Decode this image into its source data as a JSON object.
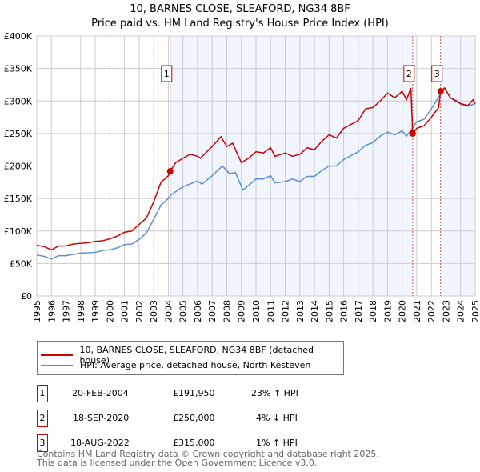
{
  "chart_data": {
    "type": "line",
    "title": "10, BARNES CLOSE, SLEAFORD, NG34 8BF",
    "subtitle": "Price paid vs. HM Land Registry's House Price Index (HPI)",
    "xlim": [
      1995,
      2025
    ],
    "ylim": [
      0,
      400000
    ],
    "y_ticks": [
      0,
      50000,
      100000,
      150000,
      200000,
      250000,
      300000,
      350000,
      400000
    ],
    "y_tick_labels": [
      "£0",
      "£50K",
      "£100K",
      "£150K",
      "£200K",
      "£250K",
      "£300K",
      "£350K",
      "£400K"
    ],
    "x_ticks": [
      "1995",
      "1996",
      "1997",
      "1998",
      "1999",
      "2000",
      "2001",
      "2002",
      "2003",
      "2004",
      "2005",
      "2006",
      "2007",
      "2008",
      "2009",
      "2010",
      "2011",
      "2012",
      "2013",
      "2014",
      "2015",
      "2016",
      "2017",
      "2018",
      "2019",
      "2020",
      "2021",
      "2022",
      "2023",
      "2024",
      "2025"
    ],
    "grid": true,
    "series": [
      {
        "name": "10, BARNES CLOSE, SLEAFORD, NG34 8BF (detached house)",
        "color": "#cc0000",
        "points": [
          [
            1995,
            78000
          ],
          [
            1995.5,
            76000
          ],
          [
            1996,
            71000
          ],
          [
            1996.5,
            77000
          ],
          [
            1997,
            77000
          ],
          [
            1997.5,
            80000
          ],
          [
            1998,
            81000
          ],
          [
            1998.5,
            82000
          ],
          [
            1999,
            84000
          ],
          [
            1999.5,
            85000
          ],
          [
            2000,
            88000
          ],
          [
            2000.5,
            92000
          ],
          [
            2001,
            98000
          ],
          [
            2001.5,
            100000
          ],
          [
            2002,
            110000
          ],
          [
            2002.5,
            120000
          ],
          [
            2003,
            145000
          ],
          [
            2003.5,
            175000
          ],
          [
            2004,
            185000
          ],
          [
            2004.13,
            191950
          ],
          [
            2004.5,
            205000
          ],
          [
            2005,
            212000
          ],
          [
            2005.5,
            218000
          ],
          [
            2006,
            215000
          ],
          [
            2006.2,
            212000
          ],
          [
            2007,
            230000
          ],
          [
            2007.6,
            245000
          ],
          [
            2008,
            230000
          ],
          [
            2008.4,
            235000
          ],
          [
            2009,
            205000
          ],
          [
            2009.5,
            212000
          ],
          [
            2010,
            222000
          ],
          [
            2010.5,
            220000
          ],
          [
            2011,
            228000
          ],
          [
            2011.3,
            215000
          ],
          [
            2012,
            220000
          ],
          [
            2012.5,
            215000
          ],
          [
            2013,
            218000
          ],
          [
            2013.5,
            228000
          ],
          [
            2014,
            225000
          ],
          [
            2014.5,
            238000
          ],
          [
            2015,
            248000
          ],
          [
            2015.5,
            243000
          ],
          [
            2016,
            258000
          ],
          [
            2017,
            270000
          ],
          [
            2017.5,
            288000
          ],
          [
            2018,
            290000
          ],
          [
            2018.5,
            300000
          ],
          [
            2019,
            312000
          ],
          [
            2019.5,
            305000
          ],
          [
            2020,
            315000
          ],
          [
            2020.3,
            302000
          ],
          [
            2020.6,
            320000
          ],
          [
            2020.72,
            250000
          ],
          [
            2021,
            258000
          ],
          [
            2021.5,
            262000
          ],
          [
            2022,
            275000
          ],
          [
            2022.5,
            290000
          ],
          [
            2022.63,
            315000
          ],
          [
            2022.9,
            320000
          ],
          [
            2023.3,
            305000
          ],
          [
            2023.8,
            298000
          ],
          [
            2024,
            296000
          ],
          [
            2024.5,
            293000
          ],
          [
            2024.85,
            302000
          ],
          [
            2025,
            296000
          ]
        ]
      },
      {
        "name": "HPI: Average price, detached house, North Kesteven",
        "color": "#5b8fd0",
        "points": [
          [
            1995,
            63000
          ],
          [
            1995.5,
            61000
          ],
          [
            1996,
            57000
          ],
          [
            1996.5,
            62000
          ],
          [
            1997,
            62000
          ],
          [
            1998,
            66000
          ],
          [
            1999,
            67000
          ],
          [
            1999.5,
            70000
          ],
          [
            2000,
            71000
          ],
          [
            2000.5,
            74000
          ],
          [
            2001,
            79000
          ],
          [
            2001.5,
            80000
          ],
          [
            2002,
            87000
          ],
          [
            2002.5,
            97000
          ],
          [
            2003,
            118000
          ],
          [
            2003.5,
            140000
          ],
          [
            2004,
            150000
          ],
          [
            2004.2,
            156000
          ],
          [
            2005,
            168000
          ],
          [
            2006,
            177000
          ],
          [
            2006.3,
            172000
          ],
          [
            2007,
            185000
          ],
          [
            2007.7,
            200000
          ],
          [
            2008.2,
            188000
          ],
          [
            2008.6,
            190000
          ],
          [
            2009.1,
            163000
          ],
          [
            2009.6,
            172000
          ],
          [
            2010,
            180000
          ],
          [
            2010.5,
            180000
          ],
          [
            2011,
            185000
          ],
          [
            2011.3,
            174000
          ],
          [
            2012,
            176000
          ],
          [
            2012.5,
            180000
          ],
          [
            2013,
            176000
          ],
          [
            2013.5,
            184000
          ],
          [
            2014,
            184000
          ],
          [
            2014.5,
            193000
          ],
          [
            2015,
            200000
          ],
          [
            2015.5,
            200000
          ],
          [
            2016,
            210000
          ],
          [
            2017,
            222000
          ],
          [
            2017.5,
            232000
          ],
          [
            2018,
            236000
          ],
          [
            2018.5,
            246000
          ],
          [
            2019,
            252000
          ],
          [
            2019.5,
            248000
          ],
          [
            2020,
            254000
          ],
          [
            2020.3,
            246000
          ],
          [
            2020.7,
            258000
          ],
          [
            2021,
            268000
          ],
          [
            2021.5,
            272000
          ],
          [
            2022,
            288000
          ],
          [
            2022.6,
            310000
          ],
          [
            2022.9,
            320000
          ],
          [
            2023.3,
            305000
          ],
          [
            2023.8,
            300000
          ],
          [
            2024,
            295000
          ],
          [
            2024.5,
            292000
          ],
          [
            2025,
            296000
          ]
        ]
      }
    ],
    "sales": [
      {
        "label": "1",
        "x": 2004.13,
        "value": 191950
      },
      {
        "label": "2",
        "x": 2020.72,
        "value": 250000
      },
      {
        "label": "3",
        "x": 2022.63,
        "value": 315000
      }
    ],
    "shaded_ranges": [
      [
        2004.13,
        2020.72
      ],
      [
        2022.63,
        2025
      ]
    ],
    "legend_placement": "below"
  },
  "legend": {
    "property": "10, BARNES CLOSE, SLEAFORD, NG34 8BF (detached house)",
    "hpi": "HPI: Average price, detached house, North Kesteven"
  },
  "table": [
    {
      "num": "1",
      "date": "20-FEB-2004",
      "price": "£191,950",
      "hpi": "23% ↑ HPI"
    },
    {
      "num": "2",
      "date": "18-SEP-2020",
      "price": "£250,000",
      "hpi": "4% ↓ HPI"
    },
    {
      "num": "3",
      "date": "18-AUG-2022",
      "price": "£315,000",
      "hpi": "1% ↑ HPI"
    }
  ],
  "footer": {
    "line1": "Contains HM Land Registry data © Crown copyright and database right 2025.",
    "line2": "This data is licensed under the Open Government Licence v3.0."
  }
}
